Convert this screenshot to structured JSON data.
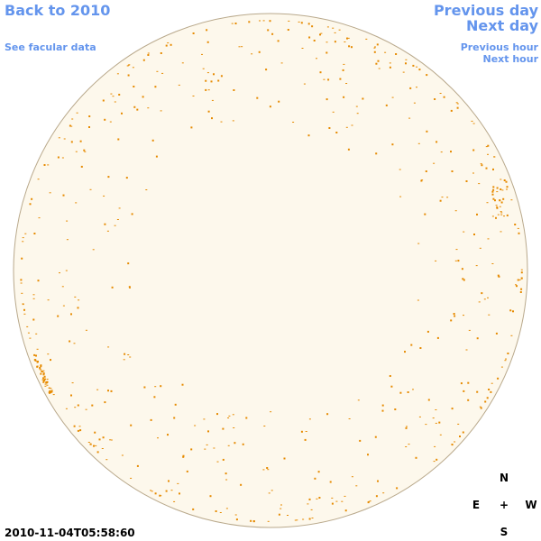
{
  "header": {
    "back": "Back to 2010",
    "facular_link": "See facular data",
    "previous_day": "Previous day",
    "next_day": "Next day",
    "previous_hour": "Previous hour",
    "next_hour": "Next hour"
  },
  "timestamp": "2010-11-04T05:58:60",
  "compass": {
    "north": "N",
    "east": "E",
    "center": "+",
    "west": "W",
    "south": "S"
  }
}
